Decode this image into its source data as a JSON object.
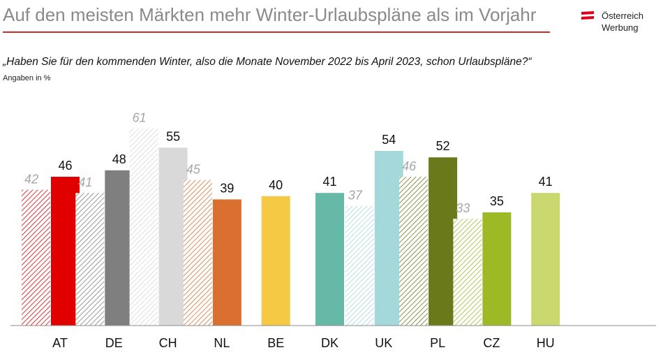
{
  "title": "Auf den meisten Märkten mehr Winter-Urlaubspläne als im Vorjahr",
  "logo": {
    "line1": "Österreich",
    "line2": "Werbung",
    "colors": [
      "#e2001a",
      "#ffffff"
    ]
  },
  "question": "„Haben Sie für den kommenden Winter, also die Monate November 2022 bis April 2023, schon Urlaubspläne?“",
  "unit_label": "Angaben in %",
  "chart_data": {
    "type": "bar",
    "categories": [
      "AT",
      "DE",
      "CH",
      "NL",
      "BE",
      "DK",
      "UK",
      "PL",
      "CZ",
      "HU"
    ],
    "series": [
      {
        "values": [
          42,
          41,
          61,
          45,
          null,
          null,
          37,
          46,
          33,
          null
        ],
        "style": "hatched, italic grey labels"
      },
      {
        "values": [
          46,
          48,
          55,
          39,
          40,
          41,
          54,
          52,
          35,
          41
        ],
        "style": "solid"
      }
    ],
    "colors": [
      "#e00000",
      "#7f7f7f",
      "#d9d9d9",
      "#d97030",
      "#f6c944",
      "#67b9a7",
      "#a4d8da",
      "#6a7a1a",
      "#9dba26",
      "#cbd870"
    ],
    "ylim": [
      0,
      65
    ],
    "grid": false,
    "legend": "none"
  }
}
